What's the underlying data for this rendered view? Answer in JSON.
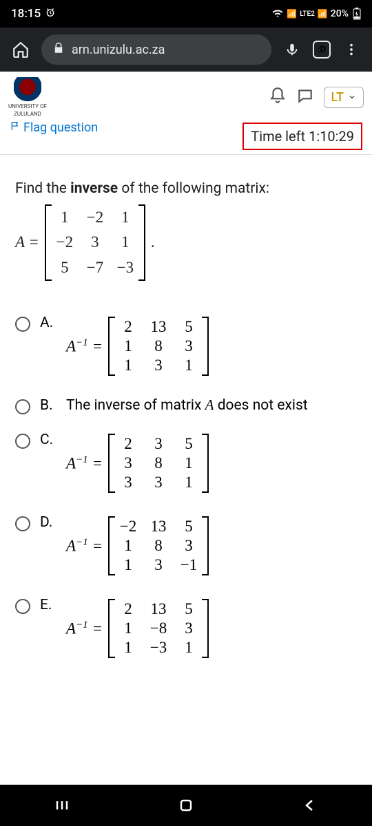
{
  "status": {
    "time": "18:15",
    "network": "LTE2",
    "battery": "20%"
  },
  "browser": {
    "url": "arn.unizulu.ac.za",
    "tab_label": ":D"
  },
  "header": {
    "university_line1": "UNIVERSITY OF",
    "university_line2": "ZULULAND",
    "lt_label": "LT"
  },
  "flag": {
    "label": "Flag question"
  },
  "timer": {
    "prefix": "Time left ",
    "value": "1:10:29"
  },
  "question": {
    "prompt_pre": "Find the ",
    "prompt_bold": "inverse",
    "prompt_post": " of the following matrix:",
    "lhs": "A =",
    "matrix": {
      "rows": [
        [
          "1",
          "−2",
          "1"
        ],
        [
          "−2",
          "3",
          "1"
        ],
        [
          "5",
          "−7",
          "−3"
        ]
      ]
    }
  },
  "options": {
    "a": {
      "letter": "A.",
      "lhs": "A",
      "exp": "−1",
      "rows": [
        [
          "2",
          "13",
          "5"
        ],
        [
          "1",
          "8",
          "3"
        ],
        [
          "1",
          "3",
          "1"
        ]
      ]
    },
    "b": {
      "letter": "B.",
      "text_pre": "The inverse of matrix ",
      "text_it": "A",
      "text_post": " does not exist"
    },
    "c": {
      "letter": "C.",
      "lhs": "A",
      "exp": "−1",
      "rows": [
        [
          "2",
          "3",
          "5"
        ],
        [
          "3",
          "8",
          "1"
        ],
        [
          "3",
          "3",
          "1"
        ]
      ]
    },
    "d": {
      "letter": "D.",
      "lhs": "A",
      "exp": "−1",
      "rows": [
        [
          "−2",
          "13",
          "5"
        ],
        [
          "1",
          "8",
          "3"
        ],
        [
          "1",
          "3",
          "−1"
        ]
      ]
    },
    "e": {
      "letter": "E.",
      "lhs": "A",
      "exp": "−1",
      "rows": [
        [
          "2",
          "13",
          "5"
        ],
        [
          "1",
          "−8",
          "3"
        ],
        [
          "1",
          "−3",
          "1"
        ]
      ]
    }
  }
}
